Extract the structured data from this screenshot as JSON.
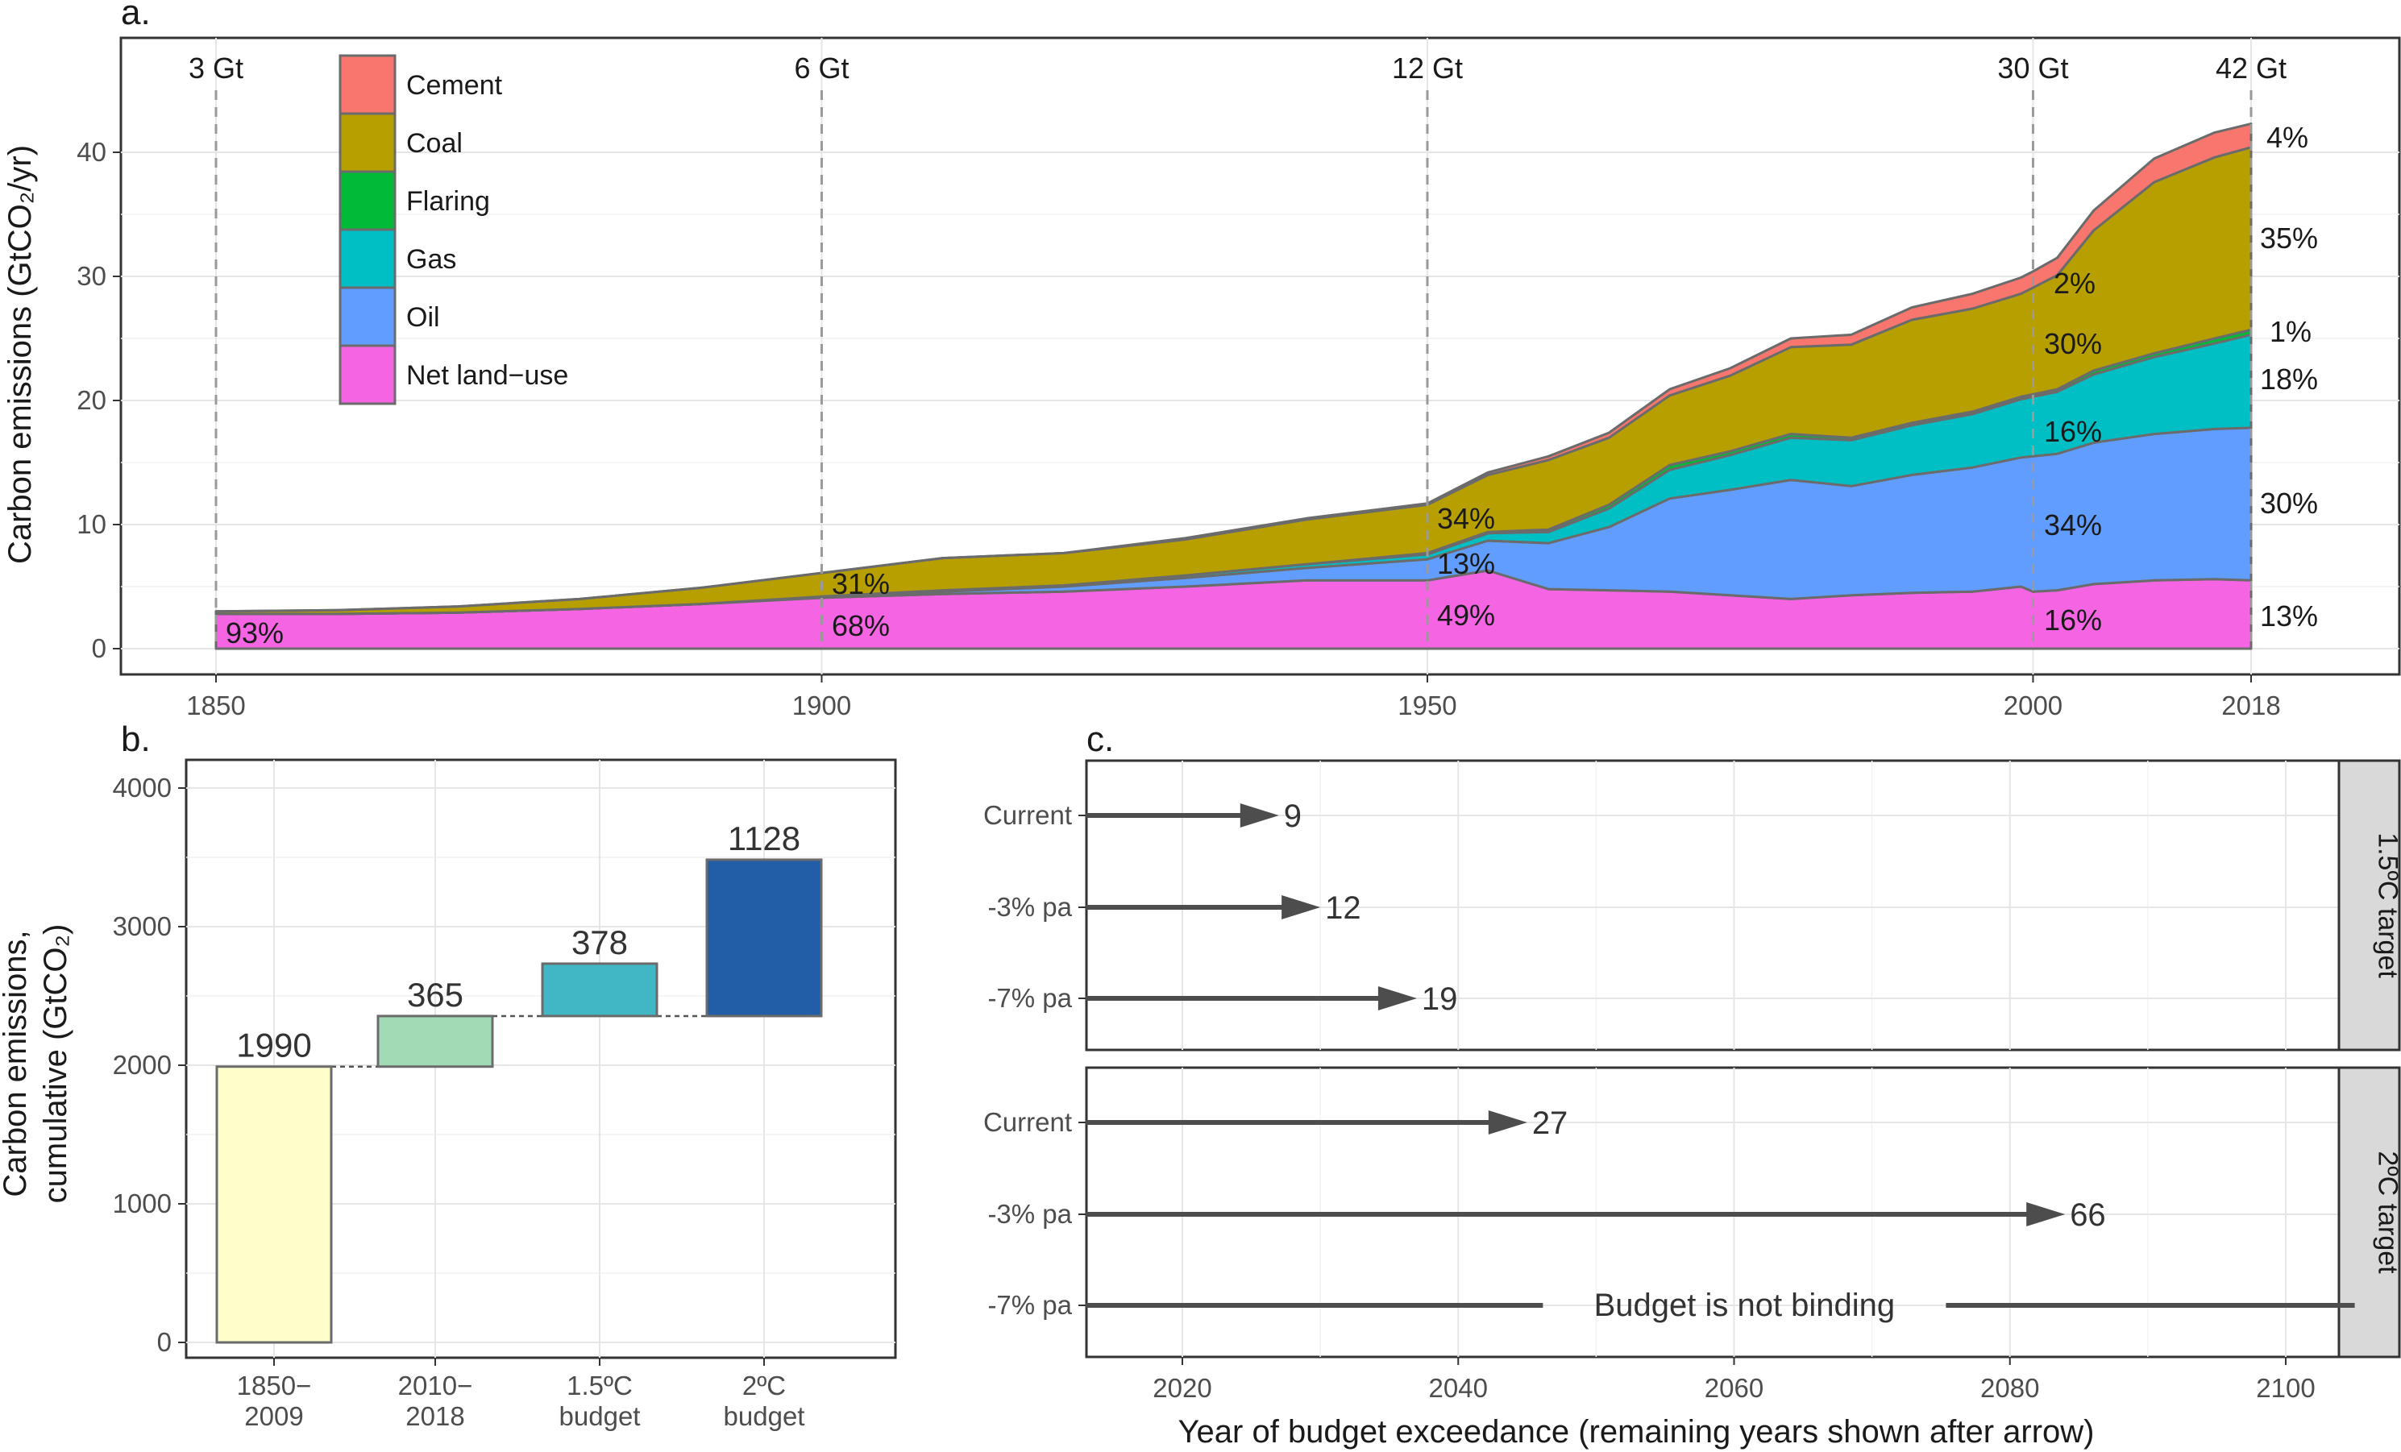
{
  "panel_a": {
    "letter": "a.",
    "y_title": "Carbon emissions (GtCO₂/yr)",
    "chart_data": {
      "type": "area",
      "x_ticks": [
        "1850",
        "1900",
        "1950",
        "2000",
        "2018"
      ],
      "y_ticks": [
        "0",
        "10",
        "20",
        "30",
        "40"
      ],
      "xlim": [
        1850,
        2018
      ],
      "ylim": [
        0,
        44
      ],
      "grid": true,
      "legend_placement": "top-left",
      "legend": [
        {
          "name": "Cement",
          "color": "#F8766D"
        },
        {
          "name": "Coal",
          "color": "#B79F00"
        },
        {
          "name": "Flaring",
          "color": "#00BA38"
        },
        {
          "name": "Gas",
          "color": "#00BFC4"
        },
        {
          "name": "Oil",
          "color": "#619CFF"
        },
        {
          "name": "Net land−use",
          "color": "#F564E3"
        }
      ],
      "stack_order": [
        "Net land−use",
        "Oil",
        "Gas",
        "Flaring",
        "Coal",
        "Cement"
      ],
      "x": [
        1850,
        1860,
        1870,
        1880,
        1890,
        1900,
        1910,
        1920,
        1930,
        1940,
        1950,
        1955,
        1960,
        1965,
        1970,
        1975,
        1980,
        1985,
        1990,
        1995,
        1999,
        2000,
        2002,
        2005,
        2010,
        2015,
        2018
      ],
      "series": [
        {
          "name": "Net land−use",
          "values": [
            2.8,
            2.8,
            2.9,
            3.2,
            3.6,
            4.1,
            4.4,
            4.6,
            5.0,
            5.5,
            5.5,
            6.3,
            4.8,
            4.7,
            4.6,
            4.3,
            4.0,
            4.3,
            4.5,
            4.6,
            5.0,
            4.6,
            4.7,
            5.2,
            5.5,
            5.6,
            5.5
          ]
        },
        {
          "name": "Oil",
          "values": [
            0.0,
            0.0,
            0.0,
            0.0,
            0.0,
            0.1,
            0.2,
            0.4,
            0.7,
            1.0,
            1.7,
            2.4,
            3.7,
            5.1,
            7.5,
            8.5,
            9.6,
            8.8,
            9.5,
            10.0,
            10.4,
            10.9,
            11.0,
            11.4,
            11.8,
            12.1,
            12.3
          ]
        },
        {
          "name": "Gas",
          "values": [
            0.0,
            0.0,
            0.0,
            0.0,
            0.0,
            0.0,
            0.1,
            0.1,
            0.2,
            0.3,
            0.4,
            0.6,
            0.9,
            1.5,
            2.3,
            2.8,
            3.4,
            3.7,
            4.0,
            4.3,
            4.7,
            4.8,
            5.0,
            5.5,
            6.2,
            6.9,
            7.5
          ]
        },
        {
          "name": "Flaring",
          "values": [
            0.0,
            0.0,
            0.0,
            0.0,
            0.0,
            0.0,
            0.0,
            0.0,
            0.0,
            0.0,
            0.1,
            0.1,
            0.2,
            0.3,
            0.4,
            0.3,
            0.3,
            0.2,
            0.2,
            0.2,
            0.2,
            0.2,
            0.2,
            0.3,
            0.3,
            0.4,
            0.4
          ]
        },
        {
          "name": "Coal",
          "values": [
            0.2,
            0.3,
            0.5,
            0.8,
            1.3,
            1.9,
            2.6,
            2.6,
            2.9,
            3.6,
            3.9,
            4.6,
            5.6,
            5.4,
            5.6,
            6.1,
            7.0,
            7.5,
            8.3,
            8.3,
            8.3,
            8.6,
            9.2,
            11.3,
            13.8,
            14.6,
            14.7
          ]
        },
        {
          "name": "Cement",
          "values": [
            0.0,
            0.0,
            0.0,
            0.0,
            0.0,
            0.0,
            0.0,
            0.0,
            0.1,
            0.1,
            0.1,
            0.2,
            0.3,
            0.4,
            0.5,
            0.6,
            0.7,
            0.8,
            1.0,
            1.2,
            1.3,
            1.3,
            1.4,
            1.6,
            1.9,
            2.0,
            1.9
          ]
        }
      ],
      "marker_years": [
        1850,
        1900,
        1950,
        2000,
        2018
      ],
      "totals_labels": [
        "3 Gt",
        "6 Gt",
        "12 Gt",
        "30 Gt",
        "42 Gt"
      ],
      "share_labels": {
        "y1850": [
          "93%"
        ],
        "y1900": [
          "31%",
          "68%"
        ],
        "y1950": [
          "34%",
          "13%",
          "49%"
        ],
        "y2000": [
          "2%",
          "30%",
          "16%",
          "34%",
          "16%"
        ],
        "y2018": [
          "4%",
          "35%",
          "1%",
          "18%",
          "30%",
          "13%"
        ]
      }
    }
  },
  "panel_b": {
    "letter": "b.",
    "y_title_1": "Carbon emissions,",
    "y_title_2": "cumulative (GtCO₂)",
    "chart_data": {
      "type": "bar",
      "subtype": "waterfall",
      "categories_line1": [
        "1850−",
        "2010−",
        "1.5ºC",
        "2ºC"
      ],
      "categories_line2": [
        "2009",
        "2018",
        "budget",
        "budget"
      ],
      "values": [
        1990,
        365,
        378,
        1128
      ],
      "value_labels": [
        "1990",
        "365",
        "378",
        "1128"
      ],
      "starts": [
        0,
        1990,
        2355,
        2355
      ],
      "colors": [
        "#FFFFCC",
        "#A1DAB4",
        "#41B6C4",
        "#225EA8"
      ],
      "y_ticks": [
        "0",
        "1000",
        "2000",
        "3000",
        "4000"
      ],
      "ylim": [
        -200,
        4200
      ],
      "grid": true
    }
  },
  "panel_c": {
    "letter": "c.",
    "x_title": "Year of budget exceedance (remaining years shown after arrow)",
    "chart_data": {
      "type": "bar",
      "subtype": "arrow-range",
      "x_ticks": [
        "2020",
        "2040",
        "2060",
        "2080",
        "2100"
      ],
      "xlim": [
        2013,
        2105
      ],
      "start_year": 2013,
      "grid": true,
      "facets": [
        {
          "strip": "1.5ºC target",
          "rows": [
            {
              "label": "Current",
              "end": 2027,
              "value_label": "9"
            },
            {
              "label": "-3% pa",
              "end": 2030,
              "value_label": "12"
            },
            {
              "label": "-7% pa",
              "end": 2037,
              "value_label": "19"
            }
          ]
        },
        {
          "strip": "2ºC target",
          "rows": [
            {
              "label": "Current",
              "end": 2045,
              "value_label": "27"
            },
            {
              "label": "-3% pa",
              "end": 2084,
              "value_label": "66"
            },
            {
              "label": "-7% pa",
              "end": 2105,
              "value_label": "",
              "note": "Budget is not binding"
            }
          ]
        }
      ]
    }
  }
}
